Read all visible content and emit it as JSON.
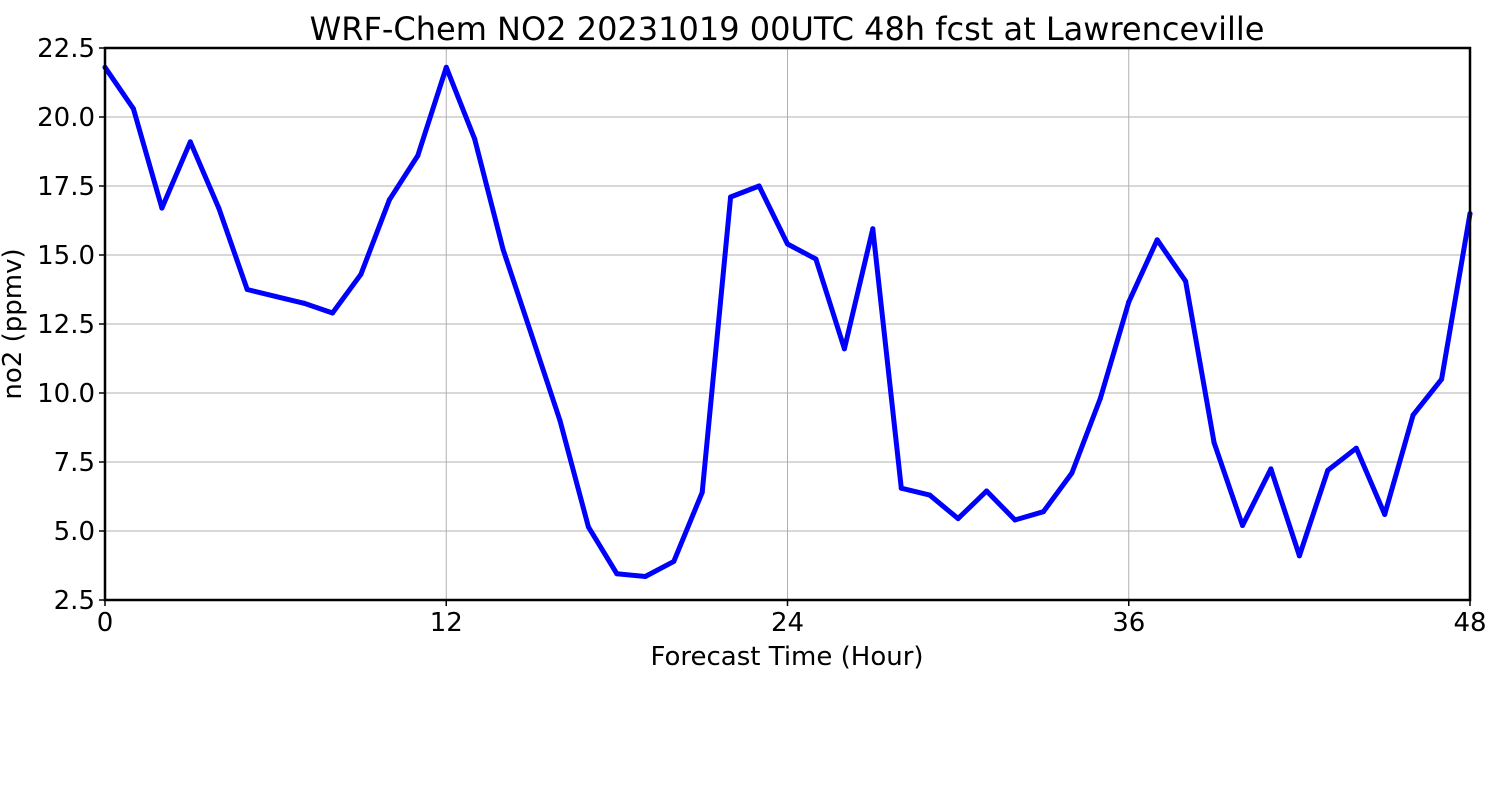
{
  "chart_data": {
    "type": "line",
    "title": "WRF-Chem NO2  20231019 00UTC 48h fcst at Lawrenceville",
    "xlabel": "Forecast Time (Hour)",
    "ylabel": "no2  (ppmv)",
    "xlim": [
      0,
      48
    ],
    "ylim": [
      2.5,
      22.5
    ],
    "xticks": [
      0,
      12,
      24,
      36,
      48
    ],
    "yticks": [
      2.5,
      5.0,
      7.5,
      10.0,
      12.5,
      15.0,
      17.5,
      20.0,
      22.5
    ],
    "xtick_labels": [
      "0",
      "12",
      "24",
      "36",
      "48"
    ],
    "ytick_labels": [
      "2.5",
      "5.0",
      "7.5",
      "10.0",
      "12.5",
      "15.0",
      "17.5",
      "20.0",
      "22.5"
    ],
    "grid": true,
    "series": [
      {
        "color": "#0000ff",
        "x": [
          0,
          1,
          2,
          3,
          4,
          5,
          6,
          7,
          8,
          9,
          10,
          11,
          12,
          13,
          14,
          15,
          16,
          17,
          18,
          19,
          20,
          21,
          22,
          23,
          24,
          25,
          26,
          27,
          28,
          29,
          30,
          31,
          32,
          33,
          34,
          35,
          36,
          37,
          38,
          39,
          40,
          41,
          42,
          43,
          44,
          45,
          46,
          47,
          48
        ],
        "values": [
          21.8,
          20.3,
          16.7,
          19.1,
          16.7,
          13.75,
          13.5,
          13.25,
          12.9,
          14.3,
          17.0,
          18.6,
          21.8,
          19.2,
          15.2,
          12.1,
          9.0,
          5.15,
          3.45,
          3.35,
          3.9,
          6.4,
          17.1,
          17.5,
          15.4,
          14.85,
          11.6,
          15.95,
          6.55,
          6.3,
          5.45,
          6.45,
          5.4,
          5.7,
          7.1,
          9.8,
          13.3,
          15.55,
          14.05,
          8.2,
          5.2,
          7.25,
          4.1,
          7.2,
          8.0,
          5.6,
          9.2,
          10.5,
          16.5
        ]
      }
    ]
  }
}
